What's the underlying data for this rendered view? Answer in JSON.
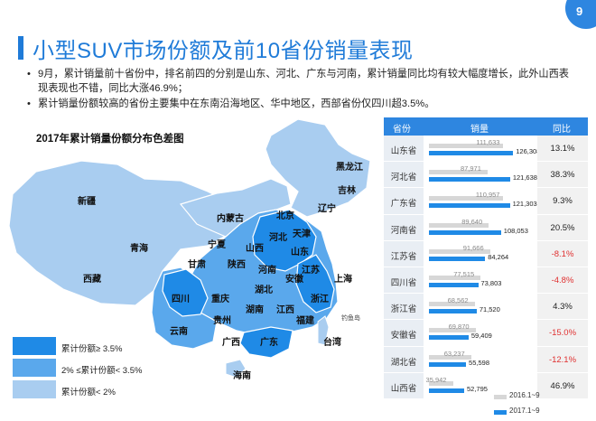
{
  "page_number": "9",
  "title": "小型SUV市场份额及前10省份销量表现",
  "bullets": [
    "9月，累计销量前十省份中，排名前四的分别是山东、河北、广东与河南，累计销量同比均有较大幅度增长，此外山西表现表现也不错，同比大涨46.9%；",
    "累计销量份额较高的省份主要集中在东南沿海地区、华中地区，西部省份仅四川超3.5%。"
  ],
  "map": {
    "title": "2017年累计销量份额分布色差图",
    "legend": [
      {
        "label": "累计份额≥ 3.5%",
        "color": "#1f8ae6"
      },
      {
        "label": "2% ≤累计份额< 3.5%",
        "color": "#5aa8ec"
      },
      {
        "label": "累计份额< 2%",
        "color": "#a9cdf0"
      }
    ],
    "province_labels": [
      "黑龙江",
      "吉林",
      "辽宁",
      "北京",
      "天津",
      "内蒙古",
      "新疆",
      "青海",
      "甘肃",
      "宁夏",
      "山西",
      "河北",
      "山东",
      "陕西",
      "河南",
      "江苏",
      "上海",
      "西藏",
      "四川",
      "重庆",
      "湖北",
      "安徽",
      "浙江",
      "湖南",
      "江西",
      "贵州",
      "福建",
      "云南",
      "广西",
      "广东",
      "台湾",
      "海南"
    ],
    "small_label": "钓鱼岛"
  },
  "table": {
    "headers": [
      "省份",
      "销量",
      "同比"
    ],
    "legend_2016": "2016.1~9",
    "legend_2017": "2017.1~9",
    "colors": {
      "y2016": "#d7d7d7",
      "y2017": "#1f8ae6",
      "negative": "#e03030"
    }
  },
  "chart_data": {
    "type": "bar",
    "categories": [
      "山东省",
      "河北省",
      "广东省",
      "河南省",
      "江苏省",
      "四川省",
      "浙江省",
      "安徽省",
      "湖北省",
      "山西省"
    ],
    "series": [
      {
        "name": "2016.1~9",
        "values": [
          111633,
          87971,
          110957,
          89640,
          91666,
          77515,
          68562,
          69870,
          63237,
          35942
        ]
      },
      {
        "name": "2017.1~9",
        "values": [
          126308,
          121638,
          121303,
          108053,
          84264,
          73803,
          71520,
          59409,
          55598,
          52795
        ]
      }
    ],
    "value_labels_2016": [
      "111,633",
      "87,971",
      "110,957",
      "89,640",
      "91,666",
      "77,515",
      "68,562",
      "69,870",
      "63,237",
      "35,942"
    ],
    "value_labels_2017": [
      "126,308",
      "121,638",
      "121,303",
      "108,053",
      "84,264",
      "73,803",
      "71,520",
      "59,409",
      "55,598",
      "52,795"
    ],
    "yoy": [
      "13.1%",
      "38.3%",
      "9.3%",
      "20.5%",
      "-8.1%",
      "-4.8%",
      "4.3%",
      "-15.0%",
      "-12.1%",
      "46.9%"
    ],
    "xlabel": "销量"
  }
}
